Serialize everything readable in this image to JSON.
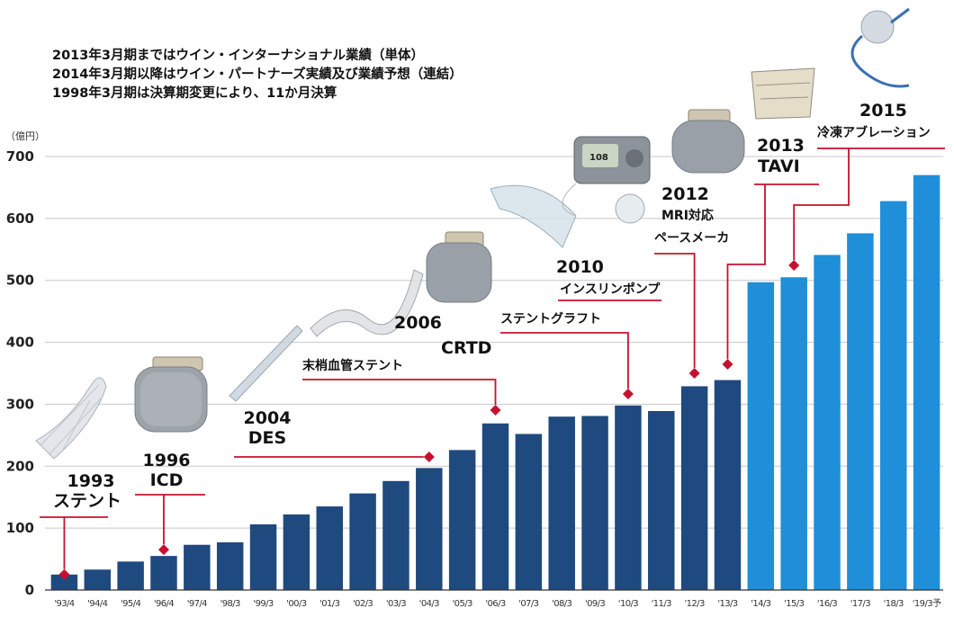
{
  "notes": [
    "2013年3月期まではウイン・インターナショナル業績（単体）",
    "2014年3月期以降はウイン・パートナーズ実績及び業績予想（連結）",
    "1998年3月期は決算期変更により、11か月決算"
  ],
  "unit_label": "（億円）",
  "annotations": {
    "a1993": {
      "year": "1993",
      "label": "ステント"
    },
    "a1996": {
      "year": "1996",
      "label": "ICD"
    },
    "a2004": {
      "year": "2004",
      "label": "DES"
    },
    "a2006": {
      "year": "2006",
      "label": "CRTD",
      "label2": "末梢血管ステント"
    },
    "a2010": {
      "year": "2010",
      "label": "インスリンポンプ",
      "label2": "ステントグラフト"
    },
    "a2012": {
      "year": "2012",
      "label": "MRI対応",
      "label2": "ペースメーカ"
    },
    "a2013": {
      "year": "2013",
      "label": "TAVI"
    },
    "a2015": {
      "year": "2015",
      "label": "冷凍アブレーション"
    }
  },
  "colors": {
    "dark_bar": "#1f4a7f",
    "light_bar": "#1e8fd8",
    "marker": "#c8102e",
    "grid": "#c8c8c8"
  },
  "chart_data": {
    "type": "bar",
    "categories": [
      "'93/4",
      "'94/4",
      "'95/4",
      "'96/4",
      "'97/4",
      "'98/3",
      "'99/3",
      "'00/3",
      "'01/3",
      "'02/3",
      "'03/3",
      "'04/3",
      "'05/3",
      "'06/3",
      "'07/3",
      "'08/3",
      "'09/3",
      "'10/3",
      "'11/3",
      "'12/3",
      "'13/3",
      "'14/3",
      "'15/3",
      "'16/3",
      "'17/3",
      "'18/3",
      "'19/3予"
    ],
    "values": [
      25,
      33,
      46,
      55,
      73,
      77,
      106,
      122,
      135,
      156,
      176,
      197,
      226,
      269,
      252,
      280,
      281,
      298,
      289,
      329,
      339,
      497,
      505,
      541,
      576,
      628,
      670
    ],
    "series_split_index": 21,
    "ylim": [
      0,
      700
    ],
    "yticks": [
      0,
      100,
      200,
      300,
      400,
      500,
      600,
      700
    ],
    "ylabel": "（億円）",
    "grid": true
  }
}
